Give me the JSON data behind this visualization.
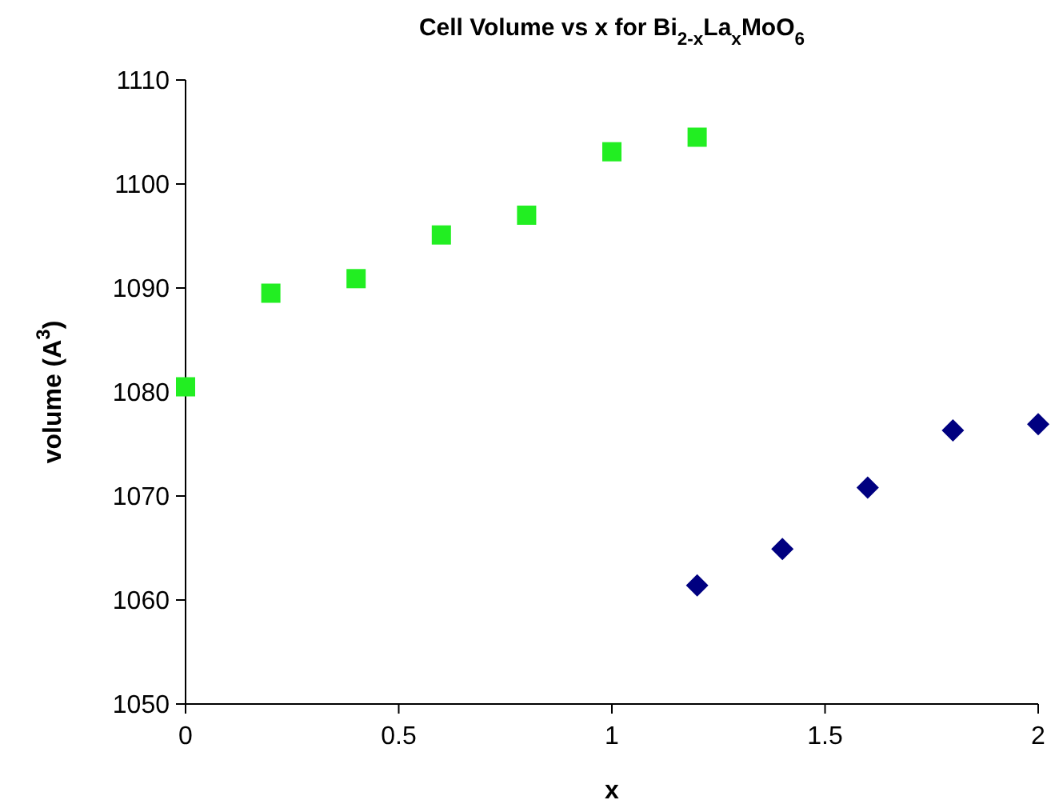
{
  "chart_data": {
    "type": "scatter",
    "title": "Cell Volume vs x for Bi$_{2-x}$La$_{x}$MoO$_{6}$",
    "xlabel": "x",
    "ylabel": "volume (A$^{3}$)",
    "series": [
      {
        "color": "#22ee22",
        "marker": "square",
        "x": [
          0,
          0.2,
          0.4,
          0.6,
          0.8,
          1.0,
          1.2
        ],
        "values": [
          1080.5,
          1089.5,
          1090.9,
          1095.1,
          1097.0,
          1103.1,
          1104.5
        ]
      },
      {
        "color": "#000080",
        "marker": "diamond",
        "x": [
          1.2,
          1.4,
          1.6,
          1.8,
          2.0
        ],
        "values": [
          1061.4,
          1064.9,
          1070.8,
          1076.3,
          1076.9
        ]
      }
    ],
    "xlim": [
      0,
      2
    ],
    "xticks": [
      0,
      0.5,
      1,
      1.5,
      2
    ],
    "ylim": [
      1050,
      1110
    ],
    "yticks": [
      1050,
      1060,
      1070,
      1080,
      1090,
      1100,
      1110
    ],
    "grid": false
  }
}
